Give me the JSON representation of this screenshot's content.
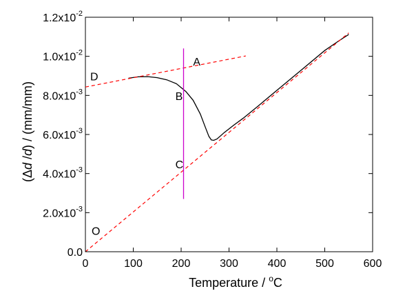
{
  "chart_data": {
    "type": "line",
    "xlabel_prefix": "Temperature / ",
    "xlabel_degree": "o",
    "xlabel_unit": "C",
    "ylabel_open": "(",
    "ylabel_delta": "Δ",
    "ylabel_d1": "d",
    "ylabel_slash": " /",
    "ylabel_d2": "d",
    "ylabel_rest": ") / (mm/mm)",
    "xlim": [
      0,
      600
    ],
    "ylim": [
      0,
      0.012
    ],
    "x_ticks": [
      {
        "value": 0,
        "label": "0"
      },
      {
        "value": 100,
        "label": "100"
      },
      {
        "value": 200,
        "label": "200"
      },
      {
        "value": 300,
        "label": "300"
      },
      {
        "value": 400,
        "label": "400"
      },
      {
        "value": 500,
        "label": "500"
      },
      {
        "value": 600,
        "label": "600"
      }
    ],
    "y_ticks": [
      {
        "value": 0,
        "mantissa": "0.0",
        "exp": ""
      },
      {
        "value": 0.002,
        "mantissa": "2.0x10",
        "exp": "-3"
      },
      {
        "value": 0.004,
        "mantissa": "4.0x10",
        "exp": "-3"
      },
      {
        "value": 0.006,
        "mantissa": "6.0x10",
        "exp": "-3"
      },
      {
        "value": 0.008,
        "mantissa": "8.0x10",
        "exp": "-3"
      },
      {
        "value": 0.01,
        "mantissa": "1.0x10",
        "exp": "-2"
      },
      {
        "value": 0.012,
        "mantissa": "1.2x10",
        "exp": "-2"
      }
    ],
    "grid": false,
    "legend": "none",
    "series": [
      {
        "style": "solid",
        "color": "#000000",
        "x": [
          90,
          110,
          130,
          150,
          170,
          190,
          210,
          225,
          240,
          250,
          258,
          263,
          268,
          275,
          290,
          310,
          330,
          360,
          400,
          450,
          500,
          530,
          550
        ],
        "y": [
          0.00888,
          0.00895,
          0.00896,
          0.00891,
          0.0088,
          0.0086,
          0.0082,
          0.00775,
          0.00705,
          0.0064,
          0.0059,
          0.00572,
          0.0057,
          0.00577,
          0.0061,
          0.00648,
          0.00684,
          0.00744,
          0.00826,
          0.00928,
          0.0103,
          0.0108,
          0.01112
        ]
      },
      {
        "style": "dashed",
        "color": "#ff0000",
        "x": [
          0,
          335
        ],
        "y": [
          0.00843,
          0.01002
        ]
      },
      {
        "style": "dashed",
        "color": "#ff0000",
        "x": [
          0,
          550
        ],
        "y": [
          0.0,
          0.0112
        ]
      },
      {
        "style": "solid",
        "color": "#cc00cc",
        "x": [
          205,
          205
        ],
        "y": [
          0.0027,
          0.0104
        ]
      }
    ],
    "annotations": [
      {
        "text": "A",
        "x": 225,
        "y": 0.0097
      },
      {
        "text": "B",
        "x": 188,
        "y": 0.00795
      },
      {
        "text": "C",
        "x": 188,
        "y": 0.00445
      },
      {
        "text": "D",
        "x": 10,
        "y": 0.00895
      },
      {
        "text": "O",
        "x": 13,
        "y": 0.00105
      }
    ]
  }
}
